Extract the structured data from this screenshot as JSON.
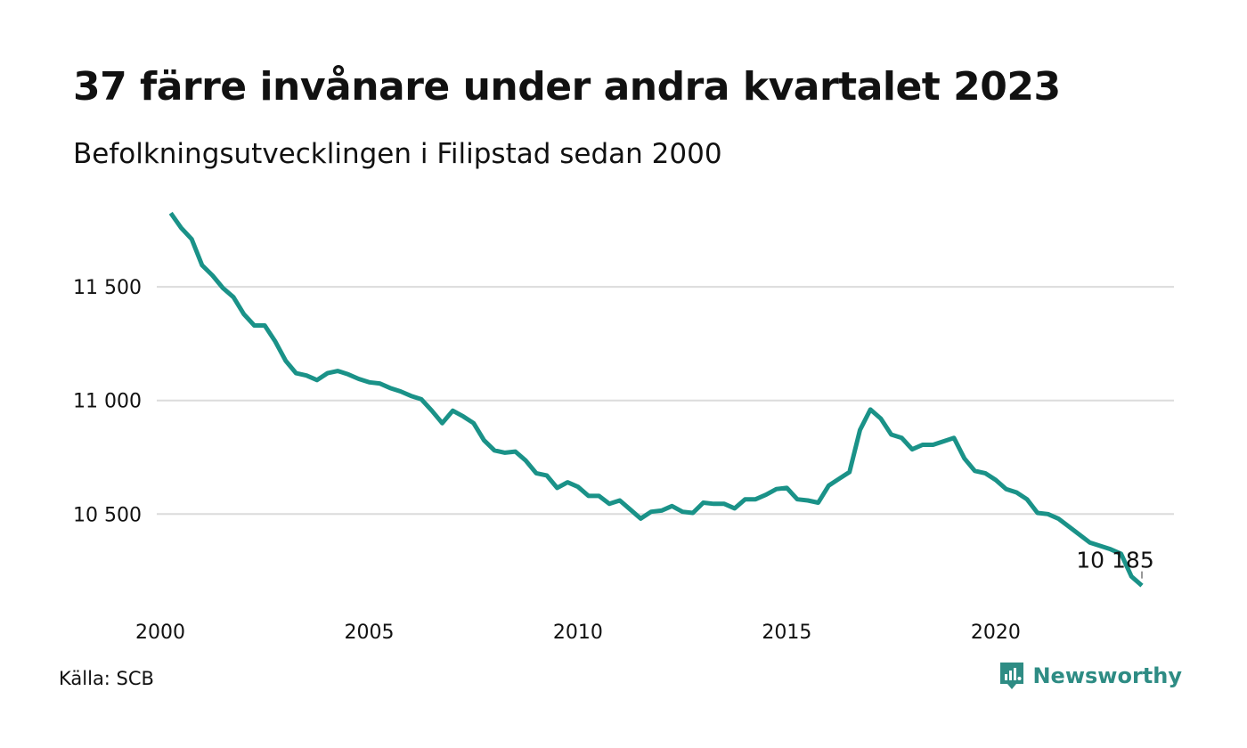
{
  "header": {
    "title": "37 färre invånare under andra kvartalet 2023",
    "subtitle": "Befolkningsutvecklingen i Filipstad sedan 2000"
  },
  "footer": {
    "source": "Källa: SCB",
    "brand": "Newsworthy"
  },
  "colors": {
    "line": "#1a9288",
    "grid": "#dcdcdc",
    "brand": "#2e8c84"
  },
  "chart_data": {
    "type": "line",
    "title": "37 färre invånare under andra kvartalet 2023",
    "subtitle": "Befolkningsutvecklingen i Filipstad sedan 2000",
    "xlabel": "",
    "ylabel": "",
    "x_ticks": [
      2000,
      2005,
      2010,
      2015,
      2020
    ],
    "x_tick_labels": [
      "2000",
      "2005",
      "2010",
      "2015",
      "2020"
    ],
    "y_ticks": [
      10500,
      11000,
      11500
    ],
    "y_tick_labels": [
      "10 500",
      "11 000",
      "11 500"
    ],
    "xlim": [
      2000,
      2023.5
    ],
    "ylim": [
      10160,
      11830
    ],
    "grid": "horizontal",
    "end_label": "10 185",
    "series": [
      {
        "x": [
          2000.25,
          2000.5,
          2000.75,
          2001.0,
          2001.25,
          2001.5,
          2001.75,
          2002.0,
          2002.25,
          2002.5,
          2002.75,
          2003.0,
          2003.25,
          2003.5,
          2003.75,
          2004.0,
          2004.25,
          2004.5,
          2004.75,
          2005.0,
          2005.25,
          2005.5,
          2005.75,
          2006.0,
          2006.25,
          2006.5,
          2006.75,
          2007.0,
          2007.25,
          2007.5,
          2007.75,
          2008.0,
          2008.25,
          2008.5,
          2008.75,
          2009.0,
          2009.25,
          2009.5,
          2009.75,
          2010.0,
          2010.25,
          2010.5,
          2010.75,
          2011.0,
          2011.25,
          2011.5,
          2011.75,
          2012.0,
          2012.25,
          2012.5,
          2012.75,
          2013.0,
          2013.25,
          2013.5,
          2013.75,
          2014.0,
          2014.25,
          2014.5,
          2014.75,
          2015.0,
          2015.25,
          2015.5,
          2015.75,
          2016.0,
          2016.25,
          2016.5,
          2016.75,
          2017.0,
          2017.25,
          2017.5,
          2017.75,
          2018.0,
          2018.25,
          2018.5,
          2018.75,
          2019.0,
          2019.25,
          2019.5,
          2019.75,
          2020.0,
          2020.25,
          2020.5,
          2020.75,
          2021.0,
          2021.25,
          2021.5,
          2021.75,
          2022.0,
          2022.25,
          2022.5,
          2022.75,
          2023.0,
          2023.25,
          2023.5
        ],
        "values": [
          11825,
          11760,
          11710,
          11595,
          11550,
          11495,
          11455,
          11380,
          11330,
          11330,
          11260,
          11175,
          11120,
          11110,
          11090,
          11120,
          11130,
          11115,
          11095,
          11080,
          11075,
          11055,
          11040,
          11020,
          11005,
          10955,
          10900,
          10955,
          10930,
          10900,
          10825,
          10780,
          10770,
          10775,
          10735,
          10680,
          10670,
          10615,
          10640,
          10620,
          10580,
          10580,
          10545,
          10560,
          10520,
          10480,
          10510,
          10515,
          10535,
          10510,
          10505,
          10550,
          10545,
          10545,
          10525,
          10565,
          10565,
          10585,
          10610,
          10615,
          10565,
          10560,
          10550,
          10625,
          10655,
          10685,
          10870,
          10960,
          10920,
          10850,
          10835,
          10785,
          10805,
          10805,
          10820,
          10835,
          10745,
          10690,
          10680,
          10650,
          10610,
          10595,
          10565,
          10505,
          10500,
          10480,
          10445,
          10410,
          10375,
          10360,
          10345,
          10325,
          10225,
          10185
        ]
      }
    ]
  }
}
